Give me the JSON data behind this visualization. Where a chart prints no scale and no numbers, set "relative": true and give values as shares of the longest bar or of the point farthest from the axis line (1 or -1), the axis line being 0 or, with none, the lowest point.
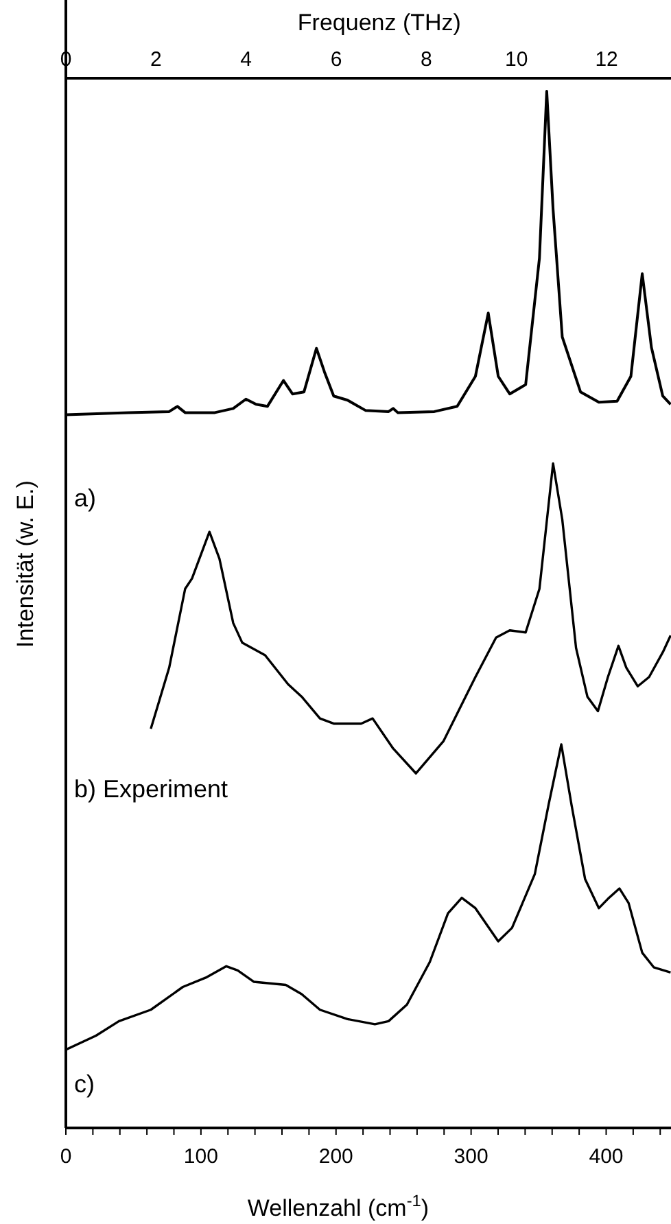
{
  "chart_data": {
    "type": "line",
    "relative": true,
    "xlabel": "Wellenzahl (cm$^{-1}$)",
    "ylabel": "Intensität (w. E.)",
    "x2label": "Frequenz (THz)",
    "xlim": [
      0,
      448
    ],
    "xticks": [
      0,
      {
        "value": 20,
        "label": null
      },
      {
        "value": 40,
        "label": null
      },
      {
        "value": 60,
        "label": null
      },
      {
        "value": 80,
        "label": null
      },
      100,
      {
        "value": 120,
        "label": null
      },
      {
        "value": 140,
        "label": null
      },
      {
        "value": 160,
        "label": null
      },
      {
        "value": 180,
        "label": null
      },
      200,
      {
        "value": 220,
        "label": null
      },
      {
        "value": 240,
        "label": null
      },
      {
        "value": 260,
        "label": null
      },
      {
        "value": 280,
        "label": null
      },
      300,
      {
        "value": 320,
        "label": null
      },
      {
        "value": 340,
        "label": null
      },
      {
        "value": 360,
        "label": null
      },
      {
        "value": 380,
        "label": null
      },
      400,
      {
        "value": 420,
        "label": null
      },
      {
        "value": 440,
        "label": null
      }
    ],
    "x2lim": [
      0,
      13.43
    ],
    "x2ticks": [
      0,
      2,
      4,
      6,
      8,
      10,
      12
    ],
    "tick_labels": "x",
    "series": [
      {
        "name": "a)",
        "color": "#000000",
        "x": [
          0,
          46,
          76.5,
          82.6,
          88.3,
          110.3,
          123.9,
          133.3,
          140.8,
          149.2,
          161.1,
          167.8,
          176.3,
          185.5,
          191.5,
          198.3,
          208.5,
          222,
          238.9,
          242.3,
          245.7,
          272.8,
          289.7,
          303.2,
          312.7,
          320.1,
          328.6,
          340.4,
          350.6,
          356,
          360.7,
          367.5,
          381,
          394.6,
          408.1,
          418.3,
          426.7,
          433.5,
          441.9,
          447.7
        ],
        "values": [
          0.688,
          0.69,
          0.691,
          0.696,
          0.69,
          0.69,
          0.694,
          0.703,
          0.698,
          0.696,
          0.721,
          0.708,
          0.71,
          0.752,
          0.729,
          0.706,
          0.702,
          0.692,
          0.691,
          0.694,
          0.69,
          0.691,
          0.696,
          0.725,
          0.786,
          0.725,
          0.708,
          0.717,
          0.839,
          1,
          0.886,
          0.763,
          0.71,
          0.7,
          0.701,
          0.725,
          0.824,
          0.753,
          0.706,
          0.698
        ]
      },
      {
        "name": "b) Experiment",
        "color": "#000000",
        "x": [
          62.9,
          76.5,
          88.3,
          93.4,
          106.3,
          113.7,
          123.9,
          130.6,
          147.5,
          164.5,
          174.6,
          188.1,
          198.3,
          218.6,
          227.1,
          242.3,
          259.2,
          279.5,
          303.2,
          318.5,
          328.6,
          340.4,
          350.6,
          360.7,
          367.5,
          377.7,
          386.1,
          393.9,
          401.3,
          409.1,
          414.9,
          423.4,
          431.8,
          442,
          447.7
        ],
        "values": [
          0.385,
          0.444,
          0.52,
          0.53,
          0.575,
          0.549,
          0.487,
          0.468,
          0.456,
          0.428,
          0.416,
          0.395,
          0.39,
          0.39,
          0.395,
          0.366,
          0.342,
          0.373,
          0.435,
          0.473,
          0.48,
          0.478,
          0.52,
          0.641,
          0.587,
          0.463,
          0.416,
          0.402,
          0.435,
          0.465,
          0.444,
          0.426,
          0.435,
          0.459,
          0.475
        ]
      },
      {
        "name": "c)",
        "color": "#000000",
        "x": [
          0,
          22.3,
          39.3,
          62.9,
          86.6,
          103.6,
          118.8,
          127.2,
          139.1,
          162.8,
          174.6,
          188.1,
          208.5,
          228.8,
          238.9,
          252.5,
          269.4,
          282.9,
          293.1,
          303.2,
          320.1,
          330.3,
          347.2,
          357.4,
          366.8,
          374.3,
          384.4,
          394.6,
          401.3,
          409.8,
          416.6,
          426.7,
          435.2,
          447.7
        ],
        "values": [
          0.0755,
          0.089,
          0.103,
          0.114,
          0.136,
          0.145,
          0.156,
          0.152,
          0.141,
          0.138,
          0.129,
          0.114,
          0.105,
          0.1,
          0.103,
          0.119,
          0.16,
          0.207,
          0.222,
          0.212,
          0.18,
          0.193,
          0.245,
          0.312,
          0.37,
          0.312,
          0.24,
          0.212,
          0.221,
          0.231,
          0.217,
          0.169,
          0.155,
          0.15
        ]
      }
    ]
  }
}
